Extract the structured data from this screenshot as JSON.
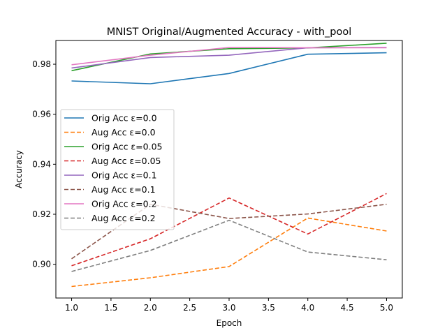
{
  "chart_data": {
    "type": "line",
    "title": "MNIST Original/Augmented Accuracy - with_pool",
    "xlabel": "Epoch",
    "ylabel": "Accuracy",
    "xlim": [
      0.8,
      5.2
    ],
    "ylim": [
      0.8865,
      0.9895
    ],
    "xticks": [
      1.0,
      1.5,
      2.0,
      2.5,
      3.0,
      3.5,
      4.0,
      4.5,
      5.0
    ],
    "xtick_labels": [
      "1.0",
      "1.5",
      "2.0",
      "2.5",
      "3.0",
      "3.5",
      "4.0",
      "4.5",
      "5.0"
    ],
    "yticks": [
      0.9,
      0.92,
      0.94,
      0.96,
      0.98
    ],
    "ytick_labels": [
      "0.90",
      "0.92",
      "0.94",
      "0.96",
      "0.98"
    ],
    "grid": false,
    "legend_position": "center-left",
    "x": [
      1,
      2,
      3,
      4,
      5
    ],
    "series": [
      {
        "name": "Orig Acc ε=0.0",
        "color": "#1f77b4",
        "dashed": false,
        "values": [
          0.9733,
          0.9722,
          0.9763,
          0.984,
          0.9846
        ]
      },
      {
        "name": "Aug Acc ε=0.0",
        "color": "#ff7f0e",
        "dashed": true,
        "values": [
          0.8911,
          0.8946,
          0.8991,
          0.9185,
          0.9133
        ]
      },
      {
        "name": "Orig Acc ε=0.05",
        "color": "#2ca02c",
        "dashed": false,
        "values": [
          0.9774,
          0.9841,
          0.9862,
          0.9865,
          0.9884
        ]
      },
      {
        "name": "Aug Acc ε=0.05",
        "color": "#d62728",
        "dashed": true,
        "values": [
          0.8994,
          0.9102,
          0.9265,
          0.9121,
          0.9283
        ]
      },
      {
        "name": "Orig Acc ε=0.1",
        "color": "#9467bd",
        "dashed": false,
        "values": [
          0.9785,
          0.9827,
          0.9836,
          0.9866,
          0.9867
        ]
      },
      {
        "name": "Aug Acc ε=0.1",
        "color": "#8c564b",
        "dashed": true,
        "values": [
          0.9022,
          0.924,
          0.9183,
          0.9201,
          0.924
        ]
      },
      {
        "name": "Orig Acc ε=0.2",
        "color": "#e377c2",
        "dashed": false,
        "values": [
          0.9798,
          0.9836,
          0.9867,
          0.9866,
          0.9866
        ]
      },
      {
        "name": "Aug Acc ε=0.2",
        "color": "#7f7f7f",
        "dashed": true,
        "values": [
          0.8971,
          0.9055,
          0.9176,
          0.9049,
          0.9018
        ]
      }
    ]
  }
}
